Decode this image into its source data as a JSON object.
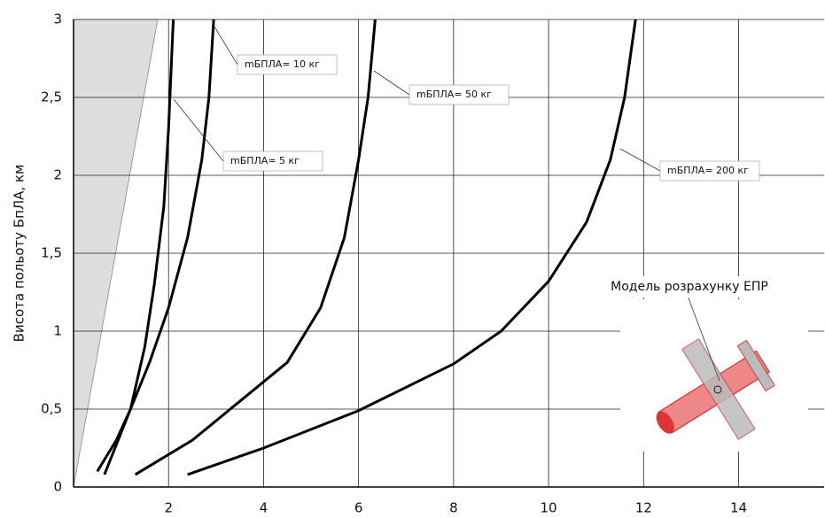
{
  "chart_data": {
    "type": "line",
    "y_label": "Висота польоту БпЛА, км",
    "inset_label": "Модель розрахунку ЕПР",
    "xlim": [
      0,
      15.8
    ],
    "xticks": [
      2,
      4,
      6,
      8,
      10,
      12,
      14
    ],
    "ylim": [
      0,
      3
    ],
    "yticks": [
      0,
      {
        "value": 0.5,
        "label": "0,5"
      },
      1,
      {
        "value": 1.5,
        "label": "1,5"
      },
      2,
      {
        "value": 2.5,
        "label": "2,5"
      },
      3
    ],
    "grid": true,
    "series": [
      {
        "name": "mБПЛА= 5 кг",
        "color": "#000000",
        "x": [
          0.5,
          0.9,
          1.2,
          1.5,
          1.7,
          1.9,
          2.0,
          2.1
        ],
        "values": [
          0.1,
          0.3,
          0.5,
          0.9,
          1.3,
          1.8,
          2.3,
          3
        ]
      },
      {
        "name": "mБПЛА= 10 кг",
        "color": "#000000",
        "x": [
          0.65,
          1.2,
          1.6,
          2.0,
          2.4,
          2.7,
          2.85,
          2.95
        ],
        "values": [
          0.08,
          0.5,
          0.8,
          1.15,
          1.6,
          2.1,
          2.5,
          3
        ]
      },
      {
        "name": "mБПЛА= 50 кг",
        "color": "#000000",
        "x": [
          1.3,
          2.5,
          3.5,
          4.5,
          5.2,
          5.7,
          6.0,
          6.2,
          6.35
        ],
        "values": [
          0.08,
          0.3,
          0.55,
          0.8,
          1.15,
          1.6,
          2.1,
          2.5,
          3
        ]
      },
      {
        "name": "mБПЛА= 200 кг",
        "color": "#000000",
        "x": [
          2.4,
          4,
          6,
          8,
          9,
          10,
          10.8,
          11.3,
          11.6,
          11.83
        ],
        "values": [
          0.08,
          0.25,
          0.49,
          0.79,
          1.0,
          1.32,
          1.7,
          2.1,
          2.5,
          3
        ]
      }
    ]
  }
}
